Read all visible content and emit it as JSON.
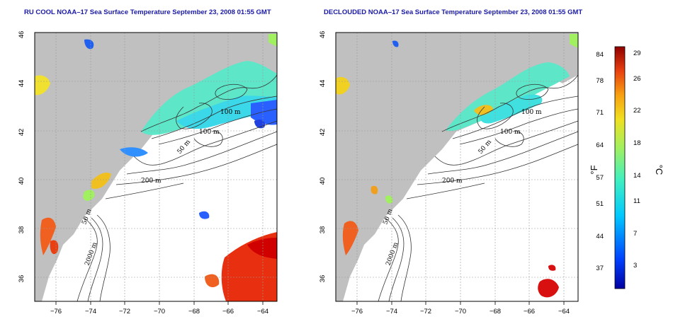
{
  "left_panel": {
    "title": "RU COOL NOAA–17 Sea Surface Temperature September 23, 2008 01:55 GMT",
    "contour_labels": [
      "100 m",
      "100 m",
      "50 m",
      "200 m",
      "50 m",
      "2000 m"
    ]
  },
  "right_panel": {
    "title": "DECLOUDED NOAA–17 Sea Surface Temperature September 23, 2008 01:55 GMT",
    "contour_labels": [
      "100 m",
      "100 m",
      "50 m",
      "200 m",
      "50 m",
      "2000 m"
    ]
  },
  "axes": {
    "lon_ticks": [
      "−76",
      "−74",
      "−72",
      "−70",
      "−68",
      "−66",
      "−64"
    ],
    "lat_ticks": [
      "46",
      "44",
      "42",
      "40",
      "38",
      "36"
    ],
    "lon_range": [
      -77,
      -63
    ],
    "lat_range": [
      35,
      46
    ]
  },
  "colorbar": {
    "fahrenheit_labels": [
      "84",
      "78",
      "71",
      "64",
      "57",
      "51",
      "44",
      "37"
    ],
    "celsius_labels": [
      "29",
      "26",
      "22",
      "18",
      "14",
      "11",
      "7",
      "3"
    ],
    "unit_f": "°F",
    "unit_c": "°C",
    "colors": [
      "#0000a0",
      "#0040ff",
      "#00c8ff",
      "#40f0c0",
      "#a0f060",
      "#f0e020",
      "#f8a010",
      "#e84010",
      "#900000"
    ]
  },
  "colors": {
    "land": "#c0c0c0",
    "title": "#1a1aa6"
  }
}
